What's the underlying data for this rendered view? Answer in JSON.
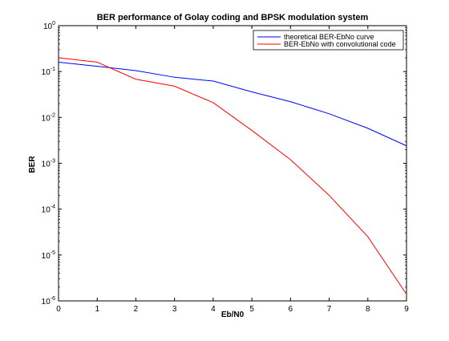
{
  "chart_data": {
    "type": "line",
    "title": "BER performance of Golay coding and BPSK modulation system",
    "xlabel": "Eb/N0",
    "ylabel": "BER",
    "xlim": [
      0,
      9
    ],
    "ylim": [
      1e-06,
      1
    ],
    "yscale": "log",
    "x_ticks": [
      "0",
      "1",
      "2",
      "3",
      "4",
      "5",
      "6",
      "7",
      "8",
      "9"
    ],
    "y_ticks": [
      {
        "base": "10",
        "exp": "0"
      },
      {
        "base": "10",
        "exp": "-1"
      },
      {
        "base": "10",
        "exp": "-2"
      },
      {
        "base": "10",
        "exp": "-3"
      },
      {
        "base": "10",
        "exp": "-4"
      },
      {
        "base": "10",
        "exp": "-5"
      },
      {
        "base": "10",
        "exp": "-6"
      }
    ],
    "grid": false,
    "legend_position": "top-right",
    "x": [
      0,
      1,
      2,
      3,
      4,
      5,
      6,
      7,
      8,
      9
    ],
    "series": [
      {
        "name": "theoretical BER-EbNo curve",
        "color": "#0000ff",
        "values": [
          0.16,
          0.13,
          0.105,
          0.075,
          0.062,
          0.036,
          0.022,
          0.012,
          0.0058,
          0.0024
        ]
      },
      {
        "name": "BER-EbNo with convolutional code",
        "color": "#ff0000",
        "values": [
          0.2,
          0.16,
          0.068,
          0.048,
          0.021,
          0.0052,
          0.0012,
          0.0002,
          2.5e-05,
          1.4e-06
        ]
      }
    ]
  }
}
